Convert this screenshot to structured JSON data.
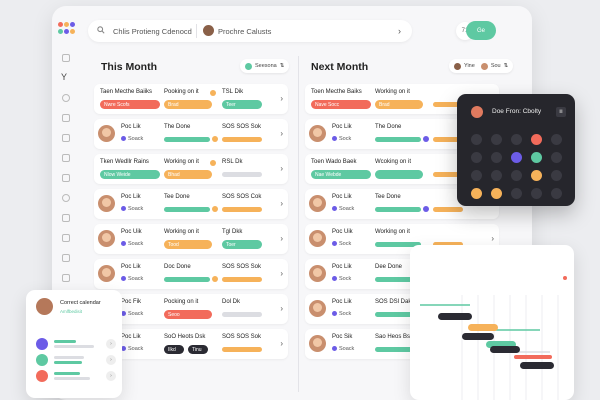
{
  "header": {
    "search_text": "Chlis Protieng Cdenocd",
    "user_text": "Prochre Calusts",
    "go_label": "Ge",
    "btn1": "71",
    "btn2": "10"
  },
  "columns": [
    {
      "title": "This Month",
      "toggle_label": "Seesona",
      "toggle_icon": "⇅"
    },
    {
      "title": "Next Month",
      "toggle_label": "Yine",
      "toggle_label_2": "Sou",
      "toggle_icon": "⇅"
    }
  ],
  "left_cards": [
    {
      "type": "task",
      "t1": "Taen Mecthe Baiiks",
      "pill": "Nwre Scofs",
      "pill_color": "#f26b5b",
      "c2": "Pooking on it",
      "c2_dot": "#f6b25a",
      "tag": "Brad",
      "tag_color": "#f6b25a",
      "c3": "TSL Dik",
      "c3_pill": "Teer",
      "c3_pill_color": "#5ec9a2"
    },
    {
      "type": "person",
      "name": "Poc Lik",
      "sub": "Soack",
      "c2": "The Done",
      "c3": "SOS SOS Sok",
      "bar2": "#5ec9a2",
      "bar3": "#f6b25a"
    },
    {
      "type": "task",
      "t1": "Tken Wedllr Rains",
      "pill": "Nlow Weide",
      "pill_color": "#5ec9a2",
      "c2": "Working on it",
      "c2_dot": "#f6b25a",
      "tag": "Bhad",
      "tag_color": "#f6b25a",
      "c3": "RSL Dk",
      "c3_pill": "",
      "c3_pill_color": ""
    },
    {
      "type": "person",
      "name": "Poc Lik",
      "sub": "Soack",
      "c2": "Tee Done",
      "c3": "SOS SOS Cok",
      "bar2": "#5ec9a2",
      "bar3": "#f6b25a"
    },
    {
      "type": "task2",
      "name": "Poc Uik",
      "sub": "Soack",
      "c2": "Working on it",
      "tag": "Tood",
      "tag_color": "#f6b25a",
      "c3": "Tgl Dkk",
      "c3_pill": "Toer",
      "c3_pill_color": "#5ec9a2"
    },
    {
      "type": "person",
      "name": "Poc Lik",
      "sub": "Soack",
      "c2": "Doc Done",
      "c3": "SOS SOS Sok",
      "bar2": "#5ec9a2",
      "bar3": "#f6b25a"
    },
    {
      "type": "task2",
      "name": "Poc Fik",
      "sub": "Soack",
      "c2": "Pocking on it",
      "tag": "Seoo",
      "tag_color": "#f26b5b",
      "c3": "Dol Dk",
      "c3_pill": "",
      "c3_pill_color": ""
    },
    {
      "type": "task2",
      "name": "Poc Lik",
      "sub": "Soack",
      "c2": "SoO Heots Dsk",
      "tag": "Ilkd",
      "tag_color": "#2b2b33",
      "tag2": "Tinu",
      "tag2_color": "#2b2b33",
      "c3": "SOS SOS Sok",
      "bar2": "",
      "bar3": "#f6b25a"
    }
  ],
  "right_cards": [
    {
      "type": "task",
      "t1": "Toen Mecthe Baiks",
      "pill": "Nave Socc",
      "pill_color": "#f26b5b",
      "c2": "Working on it",
      "tag": "Brad",
      "tag_color": "#f6b25a"
    },
    {
      "type": "person",
      "name": "Poc Lik",
      "sub": "Sock",
      "c2": "The Done"
    },
    {
      "type": "task",
      "t1": "Toen Wado Baek",
      "pill": "Nae Webde",
      "pill_color": "#5ec9a2",
      "c2": "Wcoking on it",
      "tag": "",
      "tag_color": "#5ec9a2"
    },
    {
      "type": "person",
      "name": "Poc Lik",
      "sub": "Soack",
      "c2": "Tee Done"
    },
    {
      "type": "person",
      "name": "Poc Uik",
      "sub": "Sock",
      "c2": "Working on it"
    },
    {
      "type": "person",
      "name": "Poc Lik",
      "sub": "Sock",
      "c2": "Dee Done"
    },
    {
      "type": "person",
      "name": "Poc Lik",
      "sub": "Sock",
      "c2": "SOS DSl Dak"
    },
    {
      "type": "person",
      "name": "Poc Sik",
      "sub": "Soack",
      "c2": "Sao Heos Bsk"
    }
  ],
  "dark_calendar": {
    "title": "Doe Fron: Cbolty",
    "badge": "Ⅲ"
  },
  "mini_calendar": {
    "title": "Correct calendar",
    "status": "Amlfbedisit"
  },
  "colors": {
    "accent": "#5ec9a2",
    "orange": "#f6b25a",
    "red": "#f26b5b",
    "purple": "#6c5ce7"
  }
}
